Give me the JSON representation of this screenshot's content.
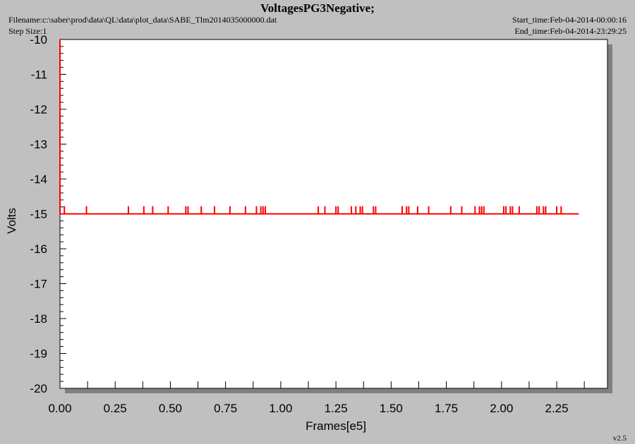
{
  "header": {
    "title": "VoltagesPG3Negative;",
    "filename": "Filename:c:\\saber\\prod\\data\\QL\\data\\plot_data\\SABE_Tlm2014035000000.dat",
    "step_size": "Step Size:1",
    "start_time": "Start_time:Feb-04-2014-00:00:16",
    "end_time": "End_time:Feb-04-2014-23:29:25",
    "version": "v2.5"
  },
  "colors": {
    "background": "#c0c0c0",
    "plot_area": "#ffffff",
    "shadow": "#808080",
    "series": "#ff0000",
    "axis": "#000000"
  },
  "chart_data": {
    "type": "line",
    "title": "VoltagesPG3Negative;",
    "xlabel": "Frames[e5]",
    "ylabel": "Volts",
    "xlim": [
      0,
      2.48
    ],
    "ylim": [
      -20,
      -10
    ],
    "x_ticks": [
      "0.00",
      "0.25",
      "0.50",
      "0.75",
      "1.00",
      "1.25",
      "1.50",
      "1.75",
      "2.00",
      "2.25"
    ],
    "x_tick_values": [
      0,
      0.25,
      0.5,
      0.75,
      1.0,
      1.25,
      1.5,
      1.75,
      2.0,
      2.25
    ],
    "y_ticks": [
      "-10",
      "-11",
      "-12",
      "-13",
      "-14",
      "-15",
      "-16",
      "-17",
      "-18",
      "-19",
      "-20"
    ],
    "y_tick_values": [
      -10,
      -11,
      -12,
      -13,
      -14,
      -15,
      -16,
      -17,
      -18,
      -19,
      -20
    ],
    "grid": false,
    "series": [
      {
        "baseline": -15.0,
        "x_start": 0.0,
        "x_end": 2.35,
        "initial_spike": -10.0,
        "spike_value": -14.78,
        "spikes_x": [
          0.02,
          0.12,
          0.31,
          0.38,
          0.42,
          0.49,
          0.57,
          0.58,
          0.64,
          0.7,
          0.77,
          0.84,
          0.89,
          0.91,
          0.92,
          0.93,
          1.17,
          1.2,
          1.25,
          1.26,
          1.32,
          1.34,
          1.36,
          1.37,
          1.42,
          1.43,
          1.55,
          1.57,
          1.58,
          1.62,
          1.67,
          1.77,
          1.82,
          1.88,
          1.9,
          1.91,
          1.92,
          2.01,
          2.02,
          2.04,
          2.05,
          2.08,
          2.16,
          2.17,
          2.19,
          2.2,
          2.25,
          2.27
        ]
      }
    ]
  }
}
